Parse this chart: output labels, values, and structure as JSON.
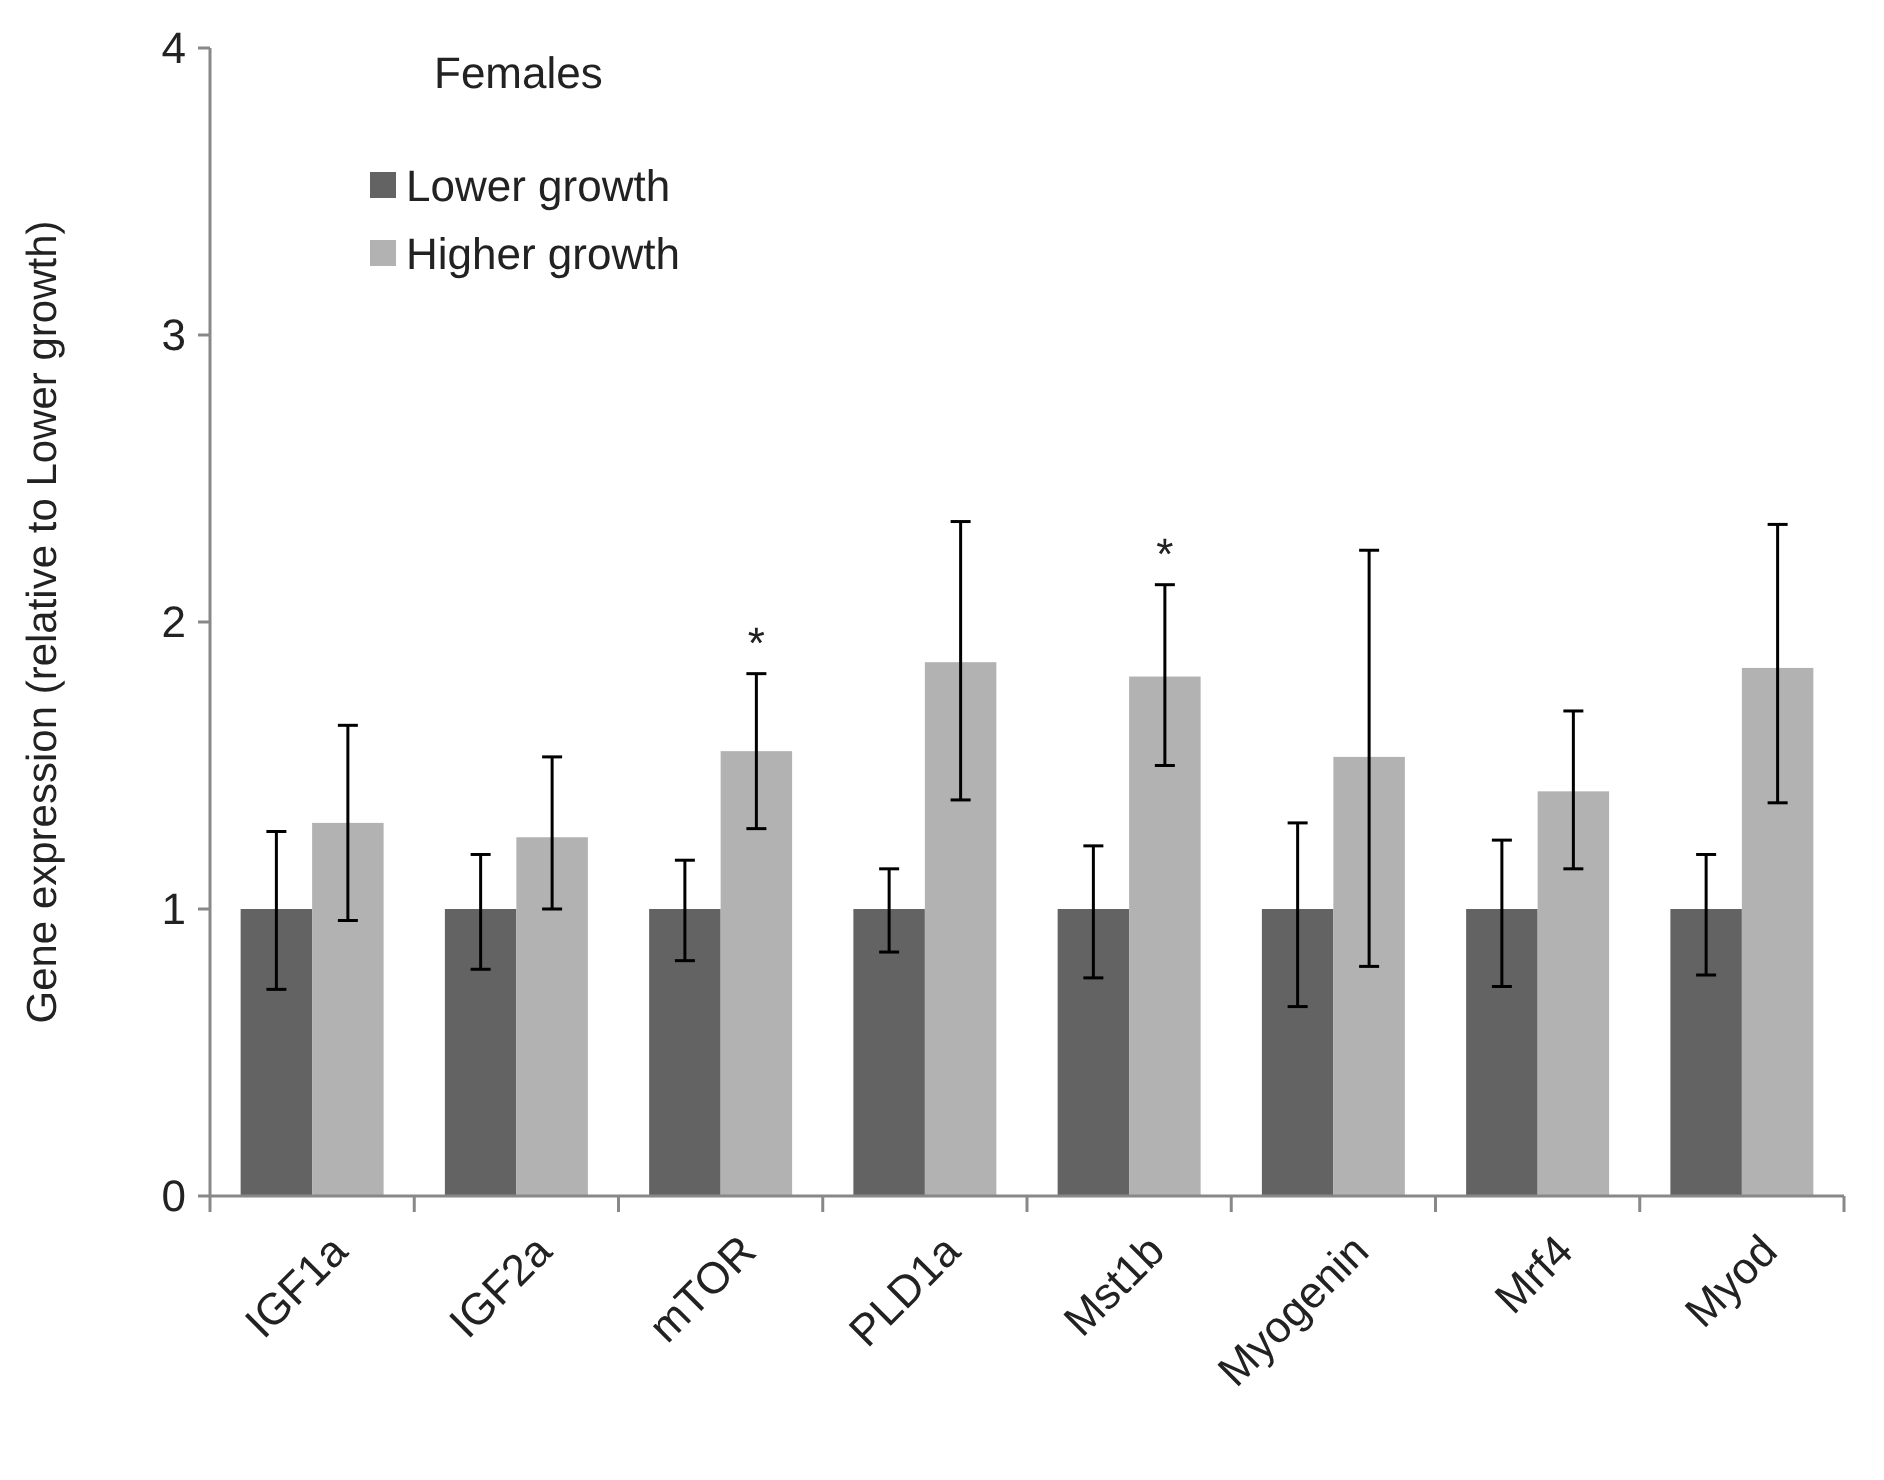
{
  "chart_data": {
    "type": "bar",
    "ylabel": "Gene expression (relative to Lower growth)",
    "legend_title": "Females",
    "legend": "top left",
    "grid": false,
    "categories": [
      "IGF1a",
      "IGF2a",
      "mTOR",
      "PLD1a",
      "Mst1b",
      "Myogenin",
      "Mrf4",
      "Myod"
    ],
    "ylim": [
      0,
      4
    ],
    "yticks": [
      0,
      1,
      2,
      3,
      4
    ],
    "series": [
      {
        "name": "Lower growth",
        "color": "#636363",
        "values": [
          1,
          1,
          1,
          1,
          1,
          1,
          1,
          1
        ],
        "errors": [
          [
            0.72,
            1.27
          ],
          [
            0.79,
            1.19
          ],
          [
            0.82,
            1.17
          ],
          [
            0.85,
            1.14
          ],
          [
            0.76,
            1.22
          ],
          [
            0.66,
            1.3
          ],
          [
            0.73,
            1.24
          ],
          [
            0.77,
            1.19
          ]
        ]
      },
      {
        "name": "Higher growth",
        "color": "#b2b2b2",
        "values": [
          1.3,
          1.25,
          1.55,
          1.86,
          1.81,
          1.53,
          1.41,
          1.84
        ],
        "errors": [
          [
            0.96,
            1.64
          ],
          [
            1.0,
            1.53
          ],
          [
            1.28,
            1.82
          ],
          [
            1.38,
            2.35
          ],
          [
            1.5,
            2.13
          ],
          [
            0.8,
            2.25
          ],
          [
            1.14,
            1.69
          ],
          [
            1.37,
            2.34
          ]
        ]
      }
    ],
    "annotations": [
      {
        "text": "*",
        "x": "mTOR",
        "y": 1.82
      },
      {
        "text": "*",
        "x": "Mst1b",
        "y": 2.13
      }
    ]
  }
}
